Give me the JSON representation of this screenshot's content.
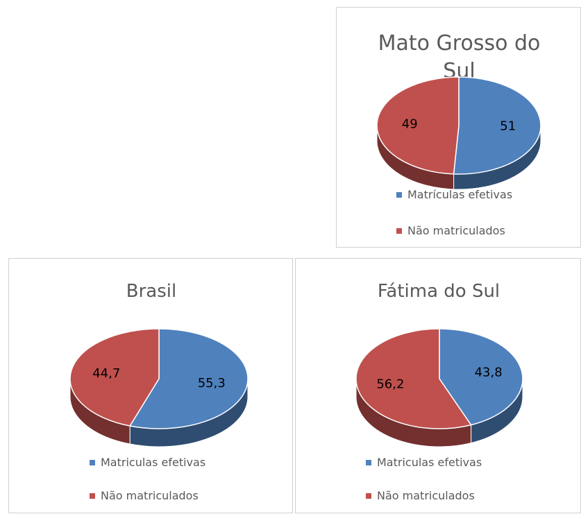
{
  "chart_data": [
    {
      "type": "pie",
      "title": "Mato Grosso do Sul",
      "categories": [
        "Matrículas efetivas",
        "Não matriculados"
      ],
      "values": [
        51,
        49
      ],
      "colors": [
        "#4f81bd",
        "#c0504d"
      ],
      "legend": "bottom"
    },
    {
      "type": "pie",
      "title": "Brasil",
      "categories": [
        "Matriculas efetivas",
        "Não matriculados"
      ],
      "values": [
        55.3,
        44.7
      ],
      "value_labels": [
        "55,3",
        "44,7"
      ],
      "colors": [
        "#4f81bd",
        "#c0504d"
      ],
      "legend": "bottom"
    },
    {
      "type": "pie",
      "title": "Fátima do Sul",
      "categories": [
        "Matriculas efetivas",
        "Não matriculados"
      ],
      "values": [
        43.8,
        56.2
      ],
      "value_labels": [
        "43,8",
        "56,2"
      ],
      "colors": [
        "#4f81bd",
        "#c0504d"
      ],
      "legend": "bottom"
    }
  ]
}
